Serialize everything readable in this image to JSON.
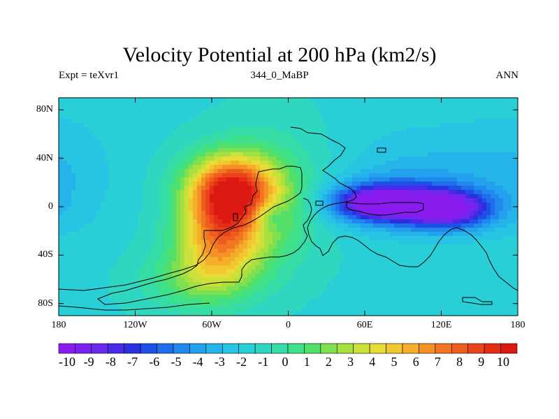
{
  "title": "Velocity Potential at 200 hPa (km2/s)",
  "subtitle_left": "Expt = teXvr1",
  "subtitle_center": "344_0_MaBP",
  "subtitle_right": "ANN",
  "y_ticks": [
    {
      "label": "80N",
      "lat": 80
    },
    {
      "label": "40N",
      "lat": 40
    },
    {
      "label": "0",
      "lat": 0
    },
    {
      "label": "40S",
      "lat": -40
    },
    {
      "label": "80S",
      "lat": -80
    }
  ],
  "x_ticks": [
    {
      "label": "180",
      "lon": -180
    },
    {
      "label": "120W",
      "lon": -120
    },
    {
      "label": "60W",
      "lon": -60
    },
    {
      "label": "0",
      "lon": 0
    },
    {
      "label": "60E",
      "lon": 60
    },
    {
      "label": "120E",
      "lon": 120
    },
    {
      "label": "180",
      "lon": 180
    }
  ],
  "colorbar": {
    "labels": [
      "-10",
      "-9",
      "-8",
      "-7",
      "-6",
      "-5",
      "-4",
      "-3",
      "-2",
      "-1",
      "0",
      "1",
      "2",
      "3",
      "4",
      "5",
      "6",
      "7",
      "8",
      "9",
      "10"
    ],
    "colors": [
      "#8a1cf0",
      "#7a22f0",
      "#6a2aee",
      "#4a2ae8",
      "#2a30e0",
      "#1f4fe6",
      "#1f6fec",
      "#2188ee",
      "#23a0ee",
      "#25b4ea",
      "#27c4e4",
      "#29cfd6",
      "#2fd6c0",
      "#35dca6",
      "#3fe08a",
      "#52e06a",
      "#7ee050",
      "#a8e040",
      "#cce03a",
      "#e8dc36",
      "#f2c830",
      "#f4ae2a",
      "#f49226",
      "#f27622",
      "#ee5c1e",
      "#ea441a",
      "#e42c16",
      "#dc1812"
    ],
    "min": -10,
    "max": 10
  },
  "field": {
    "background_value": -1.6,
    "features": [
      {
        "lon": -45,
        "lat": 15,
        "amp": 9.5,
        "sx": 24,
        "sy": 20
      },
      {
        "lon": -55,
        "lat": -25,
        "amp": 6.0,
        "sx": 22,
        "sy": 25
      },
      {
        "lon": -30,
        "lat": -15,
        "amp": 2.5,
        "sx": 30,
        "sy": 30
      },
      {
        "lon": -70,
        "lat": -60,
        "amp": 2.8,
        "sx": 30,
        "sy": 18
      },
      {
        "lon": -10,
        "lat": 20,
        "amp": 1.5,
        "sx": 30,
        "sy": 35
      },
      {
        "lon": -15,
        "lat": -8,
        "amp": -2.5,
        "sx": 9,
        "sy": 9
      },
      {
        "lon": 70,
        "lat": 3,
        "amp": -7.8,
        "sx": 25,
        "sy": 10
      },
      {
        "lon": 125,
        "lat": -2,
        "amp": -7.5,
        "sx": 24,
        "sy": 11
      },
      {
        "lon": 95,
        "lat": 5,
        "amp": -3.0,
        "sx": 40,
        "sy": 18
      },
      {
        "lon": 110,
        "lat": 40,
        "amp": -1.0,
        "sx": 50,
        "sy": 25
      },
      {
        "lon": 170,
        "lat": 30,
        "amp": -0.6,
        "sx": 30,
        "sy": 35
      },
      {
        "lon": -165,
        "lat": 20,
        "amp": -0.6,
        "sx": 25,
        "sy": 40
      }
    ]
  }
}
